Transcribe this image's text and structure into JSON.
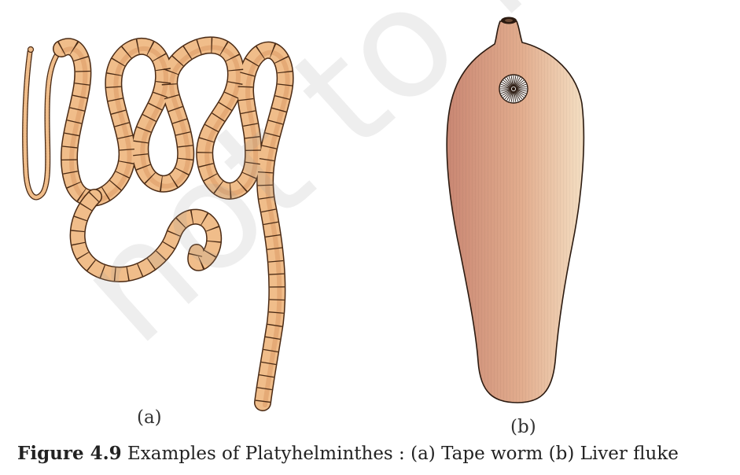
{
  "figure": {
    "panels": [
      {
        "label": "(a)"
      },
      {
        "label": "(b)"
      }
    ],
    "caption": {
      "number": "Figure 4.9",
      "text": " Examples of Platyhelminthes : (a) Tape worm (b) Liver fluke"
    }
  },
  "watermark": {
    "text": "not to be"
  },
  "colors": {
    "tapeworm_fill": "#f0bd8a",
    "tapeworm_shade": "#dd9a66",
    "outline": "#4a2a14",
    "fluke_left": "#c98773",
    "fluke_right": "#f4dfc3",
    "watermark": "#efefef"
  }
}
